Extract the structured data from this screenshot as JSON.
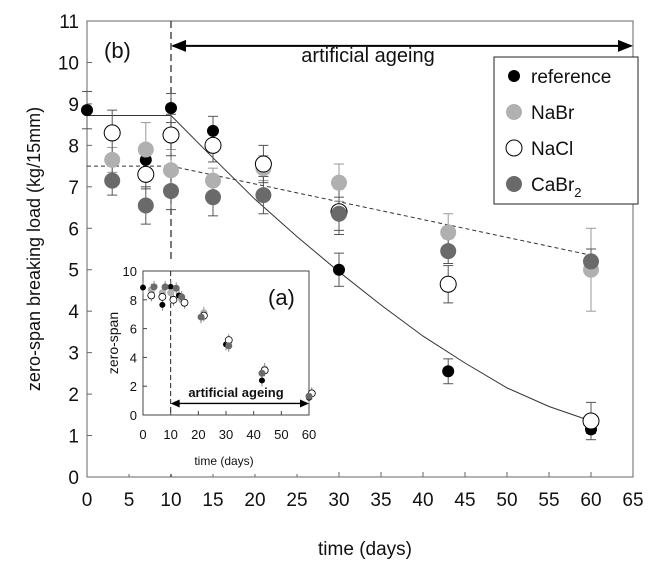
{
  "chart_data": [
    {
      "panel_label": "(b)",
      "type": "scatter",
      "xlabel": "time (days)",
      "ylabel": "zero-span breaking load (kg/15mm)",
      "xlim": [
        0,
        65
      ],
      "ylim": [
        0,
        11
      ],
      "xticks": [
        "0",
        "5",
        "10",
        "15",
        "20",
        "25",
        "30",
        "35",
        "40",
        "45",
        "50",
        "55",
        "60",
        "65"
      ],
      "yticks": [
        "0",
        "1",
        "2",
        "3",
        "4",
        "5",
        "6",
        "7",
        "8",
        "9",
        "10",
        "11"
      ],
      "grid": false,
      "legend_position": "top-right",
      "annotation": {
        "text": "artificial ageing",
        "x_start": 10,
        "x_end": 65,
        "y": 10.4
      },
      "ageing_start_x": 10,
      "series": [
        {
          "name": "reference",
          "legend_label": "reference",
          "color": "#000000",
          "fill": "#000000",
          "x": [
            0,
            7,
            10,
            15,
            30,
            43,
            60
          ],
          "y": [
            8.85,
            7.65,
            8.9,
            8.35,
            5.0,
            2.55,
            1.15
          ],
          "err": [
            0.45,
            0.2,
            0.35,
            0.35,
            0.4,
            0.3,
            0.1
          ]
        },
        {
          "name": "NaBr",
          "legend_label": "NaBr",
          "color": "#b0b0b0",
          "fill": "#b0b0b0",
          "x": [
            3,
            7,
            10,
            15,
            21,
            30,
            43,
            60
          ],
          "y": [
            7.65,
            7.9,
            7.4,
            7.15,
            7.45,
            7.1,
            5.9,
            5.0
          ],
          "err": [
            0.3,
            0.65,
            0.5,
            0.3,
            0.3,
            0.45,
            0.45,
            1.0
          ]
        },
        {
          "name": "NaCl",
          "legend_label": "NaCl",
          "color": "#000000",
          "fill": "#ffffff",
          "x": [
            3,
            7,
            10,
            15,
            21,
            30,
            43,
            60
          ],
          "y": [
            8.3,
            7.3,
            8.25,
            8.0,
            7.55,
            6.4,
            4.65,
            1.35
          ],
          "err": [
            0.55,
            0.35,
            0.5,
            0.4,
            0.45,
            0.55,
            0.45,
            0.45
          ]
        },
        {
          "name": "CaBr2",
          "legend_label": "CaBr",
          "legend_sub": "2",
          "color": "#6a6a6a",
          "fill": "#6a6a6a",
          "x": [
            3,
            7,
            10,
            15,
            21,
            30,
            43,
            60
          ],
          "y": [
            7.15,
            6.55,
            6.9,
            6.75,
            6.8,
            6.35,
            5.45,
            5.2
          ],
          "err": [
            0.35,
            0.45,
            0.45,
            0.45,
            0.45,
            0.4,
            0.3,
            0.3
          ]
        }
      ],
      "fit_lines": [
        {
          "style": "solid",
          "x": [
            0,
            10,
            15,
            20,
            25,
            30,
            35,
            40,
            45,
            50,
            55,
            60
          ],
          "y": [
            8.72,
            8.72,
            7.7,
            6.7,
            5.8,
            4.95,
            4.15,
            3.4,
            2.75,
            2.15,
            1.7,
            1.35
          ]
        },
        {
          "style": "dashed",
          "x": [
            0,
            10,
            60
          ],
          "y": [
            7.5,
            7.5,
            5.35
          ]
        }
      ]
    },
    {
      "panel_label": "(a)",
      "type": "scatter",
      "xlabel": "time (days)",
      "ylabel": "zero-span",
      "xlim": [
        0,
        60
      ],
      "ylim": [
        0,
        10
      ],
      "xticks": [
        "0",
        "10",
        "20",
        "30",
        "40",
        "50",
        "60"
      ],
      "yticks": [
        "0",
        "2",
        "4",
        "6",
        "8",
        "10"
      ],
      "annotation": {
        "text": "artificial ageing",
        "x_start": 10,
        "x_end": 60,
        "y": 0.8
      },
      "ageing_start_x": 10,
      "series": [
        {
          "name": "reference",
          "color": "#000000",
          "fill": "#000000",
          "x": [
            0,
            7,
            10,
            13,
            21,
            30,
            43,
            60
          ],
          "y": [
            8.85,
            7.65,
            8.9,
            8.3,
            6.8,
            4.9,
            2.4,
            1.2
          ]
        },
        {
          "name": "NaBr",
          "color": "#b0b0b0",
          "fill": "#b0b0b0",
          "x": [
            3,
            7,
            10,
            14,
            22,
            31,
            44,
            61
          ],
          "y": [
            8.7,
            8.5,
            8.5,
            8.0,
            7.1,
            5.1,
            3.2,
            1.5
          ]
        },
        {
          "name": "NaCl",
          "color": "#000000",
          "fill": "#ffffff",
          "x": [
            3,
            7,
            11,
            15,
            22,
            31,
            44,
            61
          ],
          "y": [
            8.3,
            8.2,
            8.0,
            7.8,
            6.9,
            5.2,
            3.1,
            1.5
          ]
        },
        {
          "name": "CaBr2",
          "color": "#6a6a6a",
          "fill": "#6a6a6a",
          "x": [
            4,
            8,
            12,
            14,
            21,
            31,
            43,
            60
          ],
          "y": [
            8.9,
            8.9,
            8.8,
            8.2,
            6.8,
            4.8,
            2.9,
            1.3
          ]
        }
      ]
    }
  ]
}
